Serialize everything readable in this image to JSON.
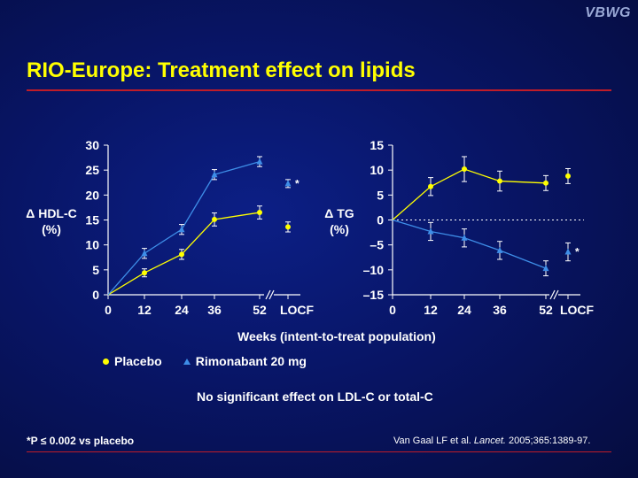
{
  "logo": "VBWG",
  "title": "RIO-Europe: Treatment effect on lipids",
  "x_caption": "Weeks (intent-to-treat population)",
  "legend": [
    {
      "label": "Placebo",
      "color": "#ffff00",
      "marker": "circle"
    },
    {
      "label": "Rimonabant 20 mg",
      "color": "#3e8ee8",
      "marker": "triangle"
    }
  ],
  "note": "No significant effect on LDL-C or total-C",
  "footnote": "*P ≤ 0.002 vs placebo",
  "citation": {
    "pre": "Van Gaal LF et al. ",
    "journal": "Lancet.",
    "post": " 2005;365:1389-97."
  },
  "chart_data": [
    {
      "type": "line",
      "ylabel_line1": "Δ HDL-C",
      "ylabel_line2": "(%)",
      "x_ticks": [
        "0",
        "12",
        "24",
        "36",
        "52",
        "LOCF"
      ],
      "ylim": [
        0,
        30
      ],
      "y_ticks": [
        "0",
        "5",
        "10",
        "15",
        "20",
        "25",
        "30"
      ],
      "series": [
        {
          "name": "Placebo",
          "color": "#ffff00",
          "marker": "circle",
          "x": [
            0,
            12,
            24,
            36,
            52
          ],
          "y": [
            0,
            4.4,
            8.1,
            15.1,
            16.5
          ],
          "err": [
            0,
            0.8,
            1.0,
            1.3,
            1.3
          ],
          "locf": 13.6,
          "locf_err": 1.0
        },
        {
          "name": "Rimonabant 20 mg",
          "color": "#3e8ee8",
          "marker": "triangle",
          "x": [
            0,
            12,
            24,
            36,
            52
          ],
          "y": [
            0,
            8.3,
            13.1,
            24.1,
            26.7
          ],
          "err": [
            0,
            1.0,
            1.0,
            1.0,
            1.0
          ],
          "locf": 22.3,
          "locf_err": 0.8
        }
      ],
      "annotation": "*",
      "reference_line": null
    },
    {
      "type": "line",
      "ylabel_line1": "Δ TG",
      "ylabel_line2": "(%)",
      "x_ticks": [
        "0",
        "12",
        "24",
        "36",
        "52",
        "LOCF"
      ],
      "ylim": [
        -15,
        15
      ],
      "y_ticks": [
        "–15",
        "–10",
        "–5",
        "0",
        "5",
        "10",
        "15"
      ],
      "series": [
        {
          "name": "Placebo",
          "color": "#ffff00",
          "marker": "circle",
          "x": [
            0,
            12,
            24,
            36,
            52
          ],
          "y": [
            0,
            6.7,
            10.2,
            7.8,
            7.4
          ],
          "err": [
            0,
            1.8,
            2.5,
            2.0,
            1.5
          ],
          "locf": 8.8,
          "locf_err": 1.5
        },
        {
          "name": "Rimonabant 20 mg",
          "color": "#3e8ee8",
          "marker": "triangle",
          "x": [
            0,
            12,
            24,
            36,
            52
          ],
          "y": [
            0,
            -2.3,
            -3.6,
            -6.1,
            -9.7
          ],
          "err": [
            0,
            1.8,
            1.8,
            1.8,
            1.5
          ],
          "locf": -6.4,
          "locf_err": 1.8
        }
      ],
      "annotation": "*",
      "reference_line": 0
    }
  ]
}
